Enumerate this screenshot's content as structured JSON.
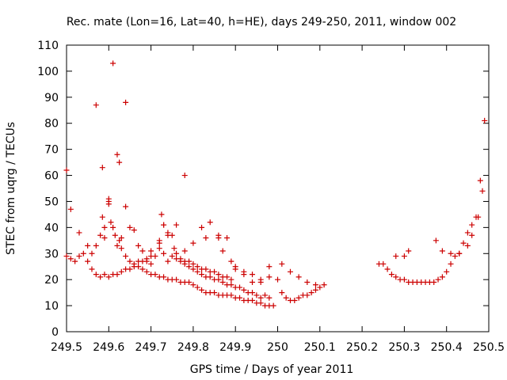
{
  "chart_data": {
    "type": "scatter",
    "title": "Rec. mate (Lon=16, Lat=40, h=HE), days 249-250, 2011, window 002",
    "xlabel": "GPS time / Days of year 2011",
    "ylabel": "STEC from uqrg / TECUs",
    "xlim": [
      249.5,
      250.5
    ],
    "ylim": [
      0,
      110
    ],
    "x_ticks": [
      249.5,
      249.6,
      249.7,
      249.8,
      249.9,
      250,
      250.1,
      250.2,
      250.3,
      250.4,
      250.5
    ],
    "x_tick_labels": [
      "249.5",
      "249.6",
      "249.7",
      "249.8",
      "249.9",
      "250",
      "250.1",
      "250.2",
      "250.3",
      "250.4",
      "250.5"
    ],
    "y_ticks": [
      0,
      10,
      20,
      30,
      40,
      50,
      60,
      70,
      80,
      90,
      100,
      110
    ],
    "y_tick_labels": [
      "0",
      "10",
      "20",
      "30",
      "40",
      "50",
      "60",
      "70",
      "80",
      "90",
      "100",
      "110"
    ],
    "grid": false,
    "legend": "none",
    "marker": "+",
    "color": "#cc0000",
    "series": [
      {
        "x": [
          249.5,
          249.51,
          249.52,
          249.53,
          249.54,
          249.55,
          249.56,
          249.57,
          249.58,
          249.59,
          249.6,
          249.61,
          249.62,
          249.63,
          249.64,
          249.65,
          249.66,
          249.67,
          249.68,
          249.69,
          249.7,
          249.71,
          249.72,
          249.73,
          249.74,
          249.75,
          249.76,
          249.77,
          249.78,
          249.79,
          249.8,
          249.81,
          249.82,
          249.83,
          249.84,
          249.85,
          249.86,
          249.87,
          249.88,
          249.89,
          249.9,
          249.91,
          249.92,
          249.93,
          249.94,
          249.95,
          249.96,
          249.97,
          249.98,
          249.99,
          249.5,
          249.51,
          249.53,
          249.55,
          249.56,
          249.57,
          249.58,
          249.585,
          249.59,
          249.6,
          249.605,
          249.61,
          249.615,
          249.62,
          249.625,
          249.63,
          249.64,
          249.65,
          249.66,
          249.67,
          249.68,
          249.69,
          249.7,
          249.72,
          249.725,
          249.73,
          249.74,
          249.75,
          249.76,
          249.77,
          249.78,
          249.79,
          249.8,
          249.81,
          249.82,
          249.83,
          249.84,
          249.85,
          249.86,
          249.87,
          249.88,
          249.89,
          249.57,
          249.585,
          249.6,
          249.61,
          249.625,
          249.64,
          249.65,
          249.67,
          249.69,
          249.7,
          249.71,
          249.72,
          249.73,
          249.74,
          249.75,
          249.76,
          249.77,
          249.78,
          249.79,
          249.8,
          249.81,
          249.82,
          249.83,
          249.84,
          249.85,
          249.86,
          249.87,
          249.88,
          249.89,
          249.9,
          249.91,
          249.92,
          249.93,
          249.94,
          249.95,
          249.96,
          249.97,
          249.98,
          249.59,
          249.6,
          249.62,
          249.63,
          249.64,
          249.66,
          249.68,
          249.7,
          249.72,
          249.74,
          249.76,
          249.78,
          249.8,
          249.82,
          249.84,
          249.86,
          249.88,
          249.9,
          249.92,
          249.94,
          249.96,
          249.98,
          249.73,
          249.755,
          249.78,
          249.83,
          249.86,
          249.87,
          249.89,
          249.9,
          249.92,
          249.94,
          249.96,
          249.98,
          250.0,
          250.01,
          250.02,
          250.03,
          250.04,
          250.05,
          250.06,
          250.07,
          250.08,
          250.09,
          250.1,
          250.11,
          250.01,
          250.03,
          250.05,
          250.07,
          250.09,
          250.24,
          250.25,
          250.26,
          250.27,
          250.28,
          250.29,
          250.3,
          250.31,
          250.32,
          250.33,
          250.34,
          250.35,
          250.36,
          250.37,
          250.38,
          250.39,
          250.4,
          250.41,
          250.42,
          250.43,
          250.44,
          250.45,
          250.46,
          250.47,
          250.48,
          250.49,
          250.28,
          250.3,
          250.31,
          250.375,
          250.39,
          250.41,
          250.43,
          250.45,
          250.46,
          250.475,
          250.485
        ],
        "y": [
          29,
          28,
          27,
          29,
          30,
          27,
          24,
          22,
          21,
          22,
          21,
          22,
          22,
          23,
          24,
          24,
          25,
          25,
          24,
          23,
          22,
          22,
          21,
          21,
          20,
          20,
          20,
          19,
          19,
          19,
          18,
          17,
          16,
          15,
          15,
          15,
          14,
          14,
          14,
          14,
          13,
          13,
          12,
          12,
          12,
          11,
          11,
          10,
          10,
          10,
          62,
          47,
          38,
          33,
          30,
          33,
          37,
          44,
          40,
          49,
          42,
          40,
          37,
          33,
          35,
          32,
          29,
          27,
          26,
          27,
          27,
          27,
          31,
          35,
          45,
          41,
          38,
          37,
          30,
          28,
          27,
          27,
          26,
          25,
          24,
          24,
          23,
          23,
          22,
          21,
          21,
          20,
          87,
          63,
          50,
          103,
          65,
          88,
          40,
          33,
          28,
          26,
          29,
          34,
          30,
          27,
          29,
          28,
          27,
          26,
          25,
          24,
          23,
          22,
          21,
          21,
          20,
          20,
          19,
          18,
          18,
          17,
          17,
          16,
          15,
          15,
          14,
          13,
          14,
          13,
          36,
          51,
          68,
          36,
          48,
          39,
          31,
          29,
          32,
          37,
          41,
          60,
          34,
          40,
          42,
          37,
          36,
          25,
          22,
          19,
          19,
          21,
          41,
          32,
          31,
          36,
          36,
          31,
          27,
          24,
          23,
          22,
          20,
          25,
          20,
          15,
          13,
          12,
          12,
          13,
          14,
          14,
          15,
          16,
          17,
          18,
          26,
          23,
          21,
          19,
          18,
          26,
          26,
          24,
          22,
          21,
          20,
          20,
          19,
          19,
          19,
          19,
          19,
          19,
          19,
          20,
          21,
          23,
          26,
          29,
          30,
          34,
          38,
          41,
          44,
          58,
          81,
          29,
          29,
          31,
          35,
          31,
          30,
          30,
          33,
          37,
          44,
          54
        ]
      }
    ]
  }
}
